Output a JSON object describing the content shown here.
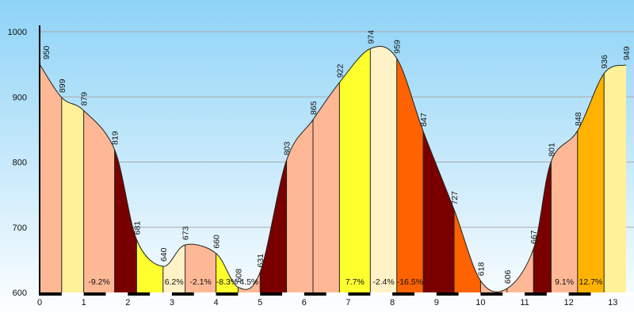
{
  "chart_data": {
    "type": "area",
    "title": "",
    "xlabel": "",
    "ylabel": "",
    "xlim": [
      0,
      13.3
    ],
    "ylim": [
      600,
      1000
    ],
    "y_ticks": [
      600,
      700,
      800,
      900,
      1000
    ],
    "x_ticks": [
      0,
      1,
      2,
      3,
      4,
      5,
      6,
      7,
      8,
      9,
      10,
      11,
      12,
      13
    ],
    "grid": true,
    "profile": [
      {
        "x": 0.0,
        "y": 950
      },
      {
        "x": 0.5,
        "y": 899
      },
      {
        "x": 1.0,
        "y": 879
      },
      {
        "x": 1.7,
        "y": 819
      },
      {
        "x": 2.2,
        "y": 681
      },
      {
        "x": 2.8,
        "y": 640
      },
      {
        "x": 3.3,
        "y": 673
      },
      {
        "x": 4.0,
        "y": 660
      },
      {
        "x": 4.5,
        "y": 608
      },
      {
        "x": 5.0,
        "y": 631
      },
      {
        "x": 5.6,
        "y": 803
      },
      {
        "x": 6.2,
        "y": 865
      },
      {
        "x": 6.8,
        "y": 922
      },
      {
        "x": 7.5,
        "y": 974
      },
      {
        "x": 8.1,
        "y": 959
      },
      {
        "x": 8.7,
        "y": 847
      },
      {
        "x": 9.4,
        "y": 727
      },
      {
        "x": 10.0,
        "y": 618
      },
      {
        "x": 10.6,
        "y": 606
      },
      {
        "x": 11.2,
        "y": 667
      },
      {
        "x": 11.6,
        "y": 801
      },
      {
        "x": 12.2,
        "y": 848
      },
      {
        "x": 12.8,
        "y": 936
      },
      {
        "x": 13.3,
        "y": 949
      }
    ],
    "segment_colors": [
      "#ffb896",
      "#fff09a",
      "#ffb896",
      "#7a0000",
      "#ffff2e",
      "#fff2c6",
      "#ffb896",
      "#ffff2e",
      "#ffb896",
      "#7a0000",
      "#ffb896",
      "#ffb896",
      "#ffff2e",
      "#fff2c6",
      "#ff6200",
      "#7a0000",
      "#ff6200",
      "#ffb896",
      "#ffb896",
      "#7a0000",
      "#ffb896",
      "#ffb300",
      "#fff09a"
    ],
    "grade_labels": [
      {
        "segment": 2,
        "text": "-9.2%"
      },
      {
        "segment": 5,
        "text": "6.2%"
      },
      {
        "segment": 6,
        "text": "-2.1%"
      },
      {
        "segment": 7,
        "text": "-8.3%"
      },
      {
        "segment": 8,
        "text": "4.5%"
      },
      {
        "segment": 12,
        "text": "7.7%"
      },
      {
        "segment": 13,
        "text": "-2.4%"
      },
      {
        "segment": 14,
        "text": "-16.5%"
      },
      {
        "segment": 20,
        "text": "9.1%"
      },
      {
        "segment": 21,
        "text": "12.7%"
      }
    ],
    "colors": {
      "sky_top": "#8ed3f7",
      "sky_bottom": "#ffffff",
      "grid": "#a9a9a9",
      "axis": "#000000"
    }
  }
}
